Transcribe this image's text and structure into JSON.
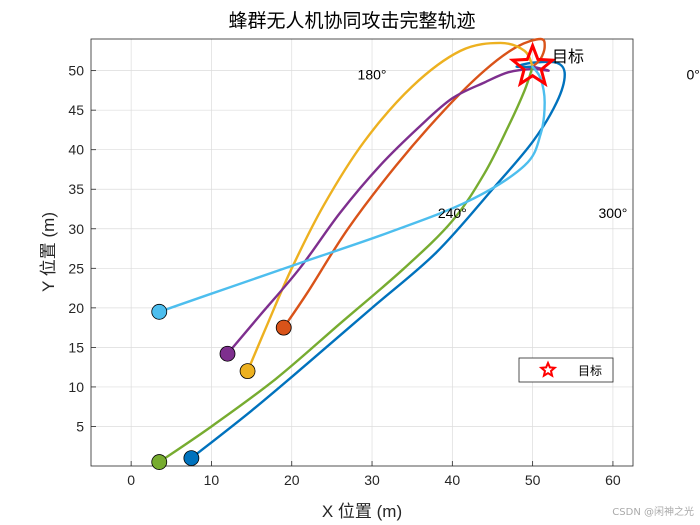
{
  "chart_data": {
    "type": "line",
    "title": "蜂群无人机协同攻击完整轨迹",
    "xlabel": "X 位置 (m)",
    "ylabel": "Y 位置 (m)",
    "xlim": [
      -5,
      62.5
    ],
    "ylim": [
      0,
      54
    ],
    "xticks": [
      0,
      10,
      20,
      30,
      40,
      50,
      60
    ],
    "yticks": [
      5,
      10,
      15,
      20,
      25,
      30,
      35,
      40,
      45,
      50
    ],
    "grid": true,
    "target": {
      "x": 50,
      "y": 50.5,
      "label": "目标",
      "color": "#ff0000"
    },
    "legend": {
      "placement": "lower-right",
      "entries": [
        "目标"
      ]
    },
    "annotations": [
      {
        "text": "180°",
        "x": 30,
        "y": 49.5
      },
      {
        "text": "0°",
        "x": 70,
        "y": 49.5
      },
      {
        "text": "240°",
        "x": 40,
        "y": 32
      },
      {
        "text": "300°",
        "x": 60,
        "y": 32
      }
    ],
    "series": [
      {
        "color": "#0072bd",
        "start": [
          7.5,
          1
        ],
        "points": [
          [
            7.5,
            1
          ],
          [
            15,
            7
          ],
          [
            22,
            13
          ],
          [
            30,
            20
          ],
          [
            38,
            27
          ],
          [
            45,
            35
          ],
          [
            50,
            41
          ],
          [
            53,
            46
          ],
          [
            54,
            49.5
          ],
          [
            53,
            51
          ],
          [
            50,
            51
          ],
          [
            48,
            50.5
          ],
          [
            50,
            50.5
          ]
        ]
      },
      {
        "color": "#d95319",
        "start": [
          19,
          17.5
        ],
        "points": [
          [
            19,
            17.5
          ],
          [
            22,
            22
          ],
          [
            27,
            30
          ],
          [
            33,
            38
          ],
          [
            39,
            45
          ],
          [
            44,
            50
          ],
          [
            48,
            53
          ],
          [
            51,
            54
          ],
          [
            51.5,
            53
          ],
          [
            51,
            51.5
          ],
          [
            50,
            50.5
          ]
        ]
      },
      {
        "color": "#edb120",
        "start": [
          14.5,
          12
        ],
        "points": [
          [
            14.5,
            12
          ],
          [
            17,
            18
          ],
          [
            20,
            25
          ],
          [
            24,
            33
          ],
          [
            29,
            41
          ],
          [
            35,
            48
          ],
          [
            41,
            52.5
          ],
          [
            46,
            53.5
          ],
          [
            49,
            52.5
          ],
          [
            50,
            50.5
          ]
        ]
      },
      {
        "color": "#7e2f8e",
        "start": [
          12,
          14.2
        ],
        "points": [
          [
            12,
            14.2
          ],
          [
            16,
            19
          ],
          [
            21,
            25
          ],
          [
            26,
            32
          ],
          [
            31,
            38
          ],
          [
            36,
            43
          ],
          [
            40,
            46.5
          ],
          [
            44,
            48.5
          ],
          [
            47,
            49.8
          ],
          [
            50,
            50.2
          ],
          [
            52,
            50
          ],
          [
            50,
            50.5
          ]
        ]
      },
      {
        "color": "#77ac30",
        "start": [
          3.5,
          0.5
        ],
        "points": [
          [
            3.5,
            0.5
          ],
          [
            10,
            5
          ],
          [
            18,
            11
          ],
          [
            26,
            18
          ],
          [
            34,
            25
          ],
          [
            40,
            31
          ],
          [
            44,
            37
          ],
          [
            47,
            43
          ],
          [
            49,
            47.5
          ],
          [
            50,
            50.5
          ]
        ]
      },
      {
        "color": "#4dbeee",
        "start": [
          3.5,
          19.5
        ],
        "points": [
          [
            3.5,
            19.5
          ],
          [
            12,
            22.5
          ],
          [
            22,
            26
          ],
          [
            32,
            29.5
          ],
          [
            42,
            33.5
          ],
          [
            49,
            38
          ],
          [
            51,
            42
          ],
          [
            51.5,
            46
          ],
          [
            51,
            49
          ],
          [
            50,
            50.5
          ]
        ]
      }
    ]
  },
  "watermark": "CSDN @闲神之光"
}
